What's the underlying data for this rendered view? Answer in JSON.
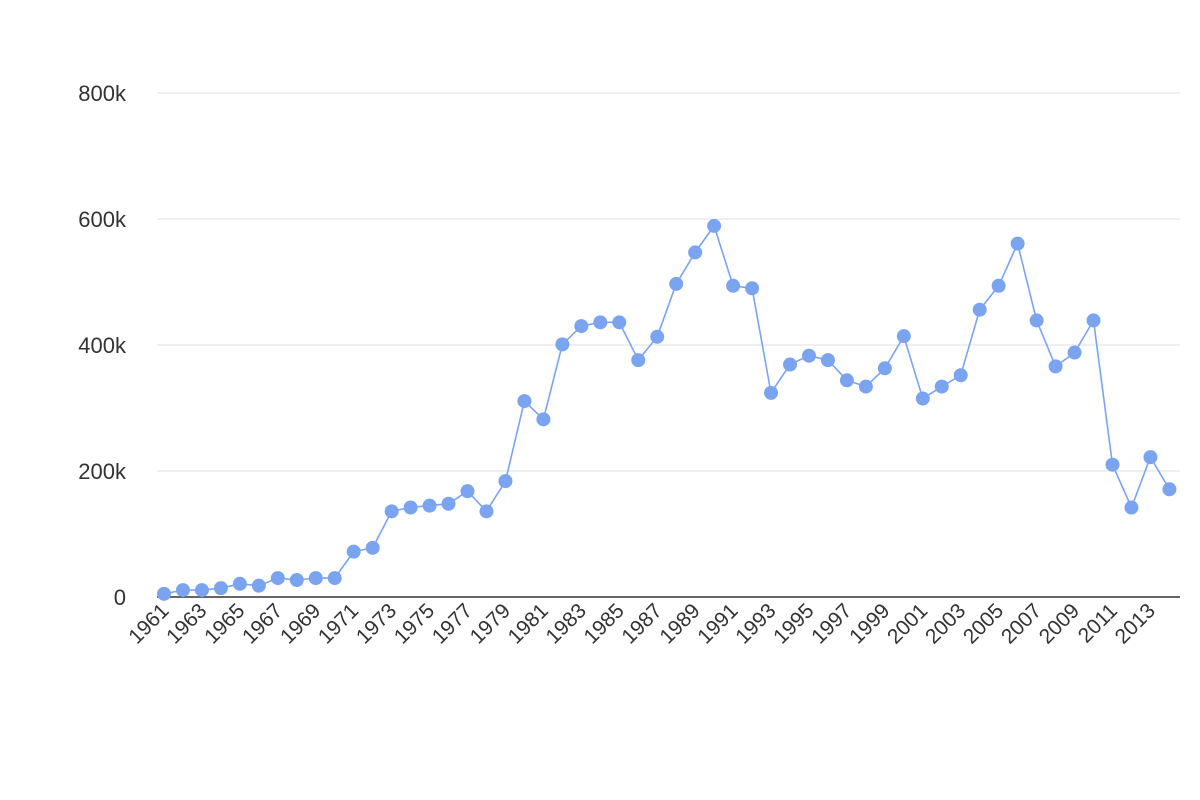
{
  "chart_data": {
    "type": "line",
    "title": "",
    "xlabel": "",
    "ylabel": "",
    "grid": true,
    "legend": "none",
    "colors": {
      "series": "#7ba4f0",
      "grid": "#e2e2e2",
      "baseline": "#333333",
      "text": "#333333"
    },
    "ylim": [
      0,
      800000
    ],
    "y_ticks": [
      {
        "value": 0,
        "label": "0"
      },
      {
        "value": 200000,
        "label": "200k"
      },
      {
        "value": 400000,
        "label": "400k"
      },
      {
        "value": 600000,
        "label": "600k"
      },
      {
        "value": 800000,
        "label": "800k"
      }
    ],
    "x_tick_labels": [
      "1961",
      "1963",
      "1965",
      "1967",
      "1969",
      "1971",
      "1973",
      "1975",
      "1977",
      "1979",
      "1981",
      "1983",
      "1985",
      "1987",
      "1989",
      "1991",
      "1993",
      "1995",
      "1997",
      "1999",
      "2001",
      "2003",
      "2005",
      "2007",
      "2009",
      "2011",
      "2013"
    ],
    "series": [
      {
        "x": [
          1961,
          1962,
          1963,
          1964,
          1965,
          1966,
          1967,
          1968,
          1969,
          1970,
          1971,
          1972,
          1973,
          1974,
          1975,
          1976,
          1977,
          1978,
          1979,
          1980,
          1981,
          1982,
          1983,
          1984,
          1985,
          1986,
          1987,
          1988,
          1989,
          1990,
          1991,
          1992,
          1993,
          1994,
          1995,
          1996,
          1997,
          1998,
          1999,
          2000,
          2001,
          2002,
          2003,
          2004,
          2005,
          2006,
          2007,
          2008,
          2009,
          2010,
          2011,
          2012,
          2013,
          2014
        ],
        "values": [
          5000,
          11000,
          11000,
          14000,
          21000,
          18000,
          30000,
          27000,
          30000,
          30000,
          72000,
          78000,
          136000,
          142000,
          145000,
          148000,
          168000,
          136000,
          184000,
          311000,
          282000,
          401000,
          430000,
          436000,
          436000,
          376000,
          413000,
          497000,
          547000,
          589000,
          494000,
          490000,
          324000,
          369000,
          383000,
          376000,
          344000,
          334000,
          363000,
          414000,
          315000,
          334000,
          352000,
          456000,
          494000,
          561000,
          439000,
          366000,
          388000,
          439000,
          210000,
          142000,
          222000,
          171000
        ]
      }
    ]
  }
}
